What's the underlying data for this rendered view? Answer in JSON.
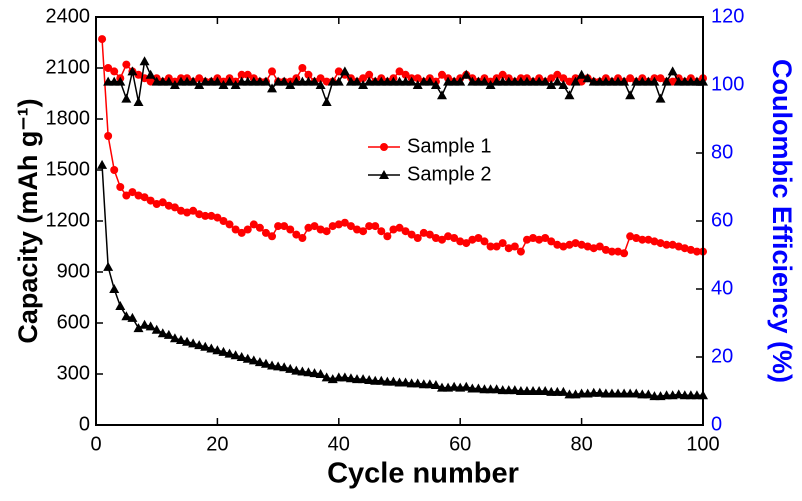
{
  "chart_data": {
    "type": "line",
    "xlabel": "Cycle number",
    "ylabel": "Capacity (mAh g⁻¹)",
    "y2label": "Coulombic Efficiency (%)",
    "x": [
      1,
      2,
      3,
      4,
      5,
      6,
      7,
      8,
      9,
      10,
      11,
      12,
      13,
      14,
      15,
      16,
      17,
      18,
      19,
      20,
      21,
      22,
      23,
      24,
      25,
      26,
      27,
      28,
      29,
      30,
      31,
      32,
      33,
      34,
      35,
      36,
      37,
      38,
      39,
      40,
      41,
      42,
      43,
      44,
      45,
      46,
      47,
      48,
      49,
      50,
      51,
      52,
      53,
      54,
      55,
      56,
      57,
      58,
      59,
      60,
      61,
      62,
      63,
      64,
      65,
      66,
      67,
      68,
      69,
      70,
      71,
      72,
      73,
      74,
      75,
      76,
      77,
      78,
      79,
      80,
      81,
      82,
      83,
      84,
      85,
      86,
      87,
      88,
      89,
      90,
      91,
      92,
      93,
      94,
      95,
      96,
      97,
      98,
      99,
      100
    ],
    "series": [
      {
        "name": "Sample 1",
        "color": "#ff0000",
        "marker": "circle",
        "values": [
          2270,
          1700,
          1500,
          1400,
          1350,
          1370,
          1350,
          1340,
          1320,
          1300,
          1310,
          1290,
          1280,
          1260,
          1250,
          1260,
          1240,
          1230,
          1230,
          1220,
          1200,
          1180,
          1150,
          1130,
          1150,
          1180,
          1160,
          1130,
          1110,
          1170,
          1170,
          1150,
          1120,
          1100,
          1160,
          1170,
          1150,
          1140,
          1170,
          1180,
          1190,
          1170,
          1150,
          1140,
          1170,
          1170,
          1140,
          1110,
          1150,
          1160,
          1140,
          1120,
          1100,
          1130,
          1120,
          1100,
          1090,
          1110,
          1100,
          1080,
          1070,
          1090,
          1100,
          1080,
          1050,
          1050,
          1070,
          1040,
          1050,
          1020,
          1090,
          1100,
          1090,
          1100,
          1080,
          1060,
          1050,
          1060,
          1070,
          1060,
          1050,
          1040,
          1050,
          1030,
          1020,
          1020,
          1010,
          1110,
          1100,
          1090,
          1090,
          1080,
          1070,
          1060,
          1060,
          1050,
          1040,
          1030,
          1020,
          1020
        ]
      },
      {
        "name": "Sample 2",
        "color": "#000000",
        "marker": "triangle",
        "values": [
          1530,
          930,
          800,
          700,
          640,
          630,
          570,
          590,
          580,
          560,
          540,
          530,
          510,
          500,
          490,
          480,
          470,
          460,
          450,
          440,
          430,
          420,
          410,
          400,
          390,
          380,
          370,
          360,
          350,
          345,
          340,
          330,
          320,
          315,
          310,
          305,
          300,
          280,
          270,
          280,
          280,
          275,
          270,
          270,
          265,
          260,
          260,
          255,
          255,
          250,
          250,
          245,
          245,
          240,
          240,
          235,
          220,
          220,
          225,
          220,
          225,
          215,
          215,
          210,
          210,
          210,
          205,
          205,
          205,
          200,
          200,
          200,
          200,
          200,
          195,
          195,
          195,
          180,
          180,
          185,
          185,
          190,
          190,
          185,
          185,
          185,
          185,
          185,
          185,
          180,
          180,
          170,
          170,
          175,
          175,
          180,
          175,
          175,
          175,
          175
        ]
      },
      {
        "name": "Sample 1",
        "color": "#ff0000",
        "marker": "circle",
        "axis": "y2",
        "values": [
          null,
          105,
          104,
          102,
          106,
          104,
          103,
          102,
          101,
          102,
          101,
          102,
          101,
          102,
          102,
          101,
          102,
          101,
          101,
          102,
          101,
          102,
          101,
          103,
          103,
          102,
          101,
          101,
          104,
          101,
          101,
          101,
          102,
          105,
          103,
          101,
          102,
          101,
          101,
          104,
          103,
          102,
          101,
          102,
          103,
          101,
          102,
          101,
          102,
          104,
          103,
          102,
          102,
          101,
          102,
          101,
          103,
          102,
          101,
          102,
          103,
          102,
          101,
          102,
          101,
          102,
          103,
          102,
          101,
          102,
          102,
          101,
          102,
          101,
          102,
          103,
          102,
          101,
          102,
          101,
          102,
          101,
          101,
          102,
          101,
          102,
          101,
          102,
          101,
          102,
          101,
          102,
          102,
          101,
          101,
          102,
          101,
          102,
          101,
          102
        ]
      },
      {
        "name": "Sample 2",
        "color": "#000000",
        "marker": "triangle",
        "axis": "y2",
        "values": [
          null,
          101,
          101,
          101,
          96,
          104,
          95,
          107,
          103,
          101,
          101,
          101,
          100,
          101,
          101,
          101,
          100,
          101,
          101,
          101,
          100,
          101,
          100,
          101,
          101,
          101,
          101,
          101,
          99,
          101,
          101,
          100,
          101,
          101,
          101,
          101,
          100,
          95,
          101,
          101,
          104,
          101,
          101,
          100,
          101,
          101,
          101,
          101,
          101,
          101,
          101,
          101,
          100,
          101,
          101,
          100,
          97,
          101,
          101,
          101,
          103,
          101,
          101,
          101,
          100,
          101,
          101,
          101,
          101,
          101,
          101,
          101,
          101,
          101,
          100,
          101,
          100,
          97,
          101,
          103,
          102,
          101,
          101,
          101,
          101,
          101,
          101,
          97,
          101,
          101,
          101,
          101,
          96,
          101,
          104,
          101,
          101,
          101,
          101,
          101
        ]
      }
    ],
    "xlim": [
      0,
      100
    ],
    "xticks": [
      0,
      20,
      40,
      60,
      80,
      100
    ],
    "ylim": [
      0,
      2400
    ],
    "yticks": [
      0,
      300,
      600,
      900,
      1200,
      1500,
      1800,
      2100,
      2400
    ],
    "y2lim": [
      0,
      120
    ],
    "y2ticks": [
      0,
      20,
      40,
      60,
      80,
      100,
      120
    ],
    "y2color": "#0000ff"
  }
}
